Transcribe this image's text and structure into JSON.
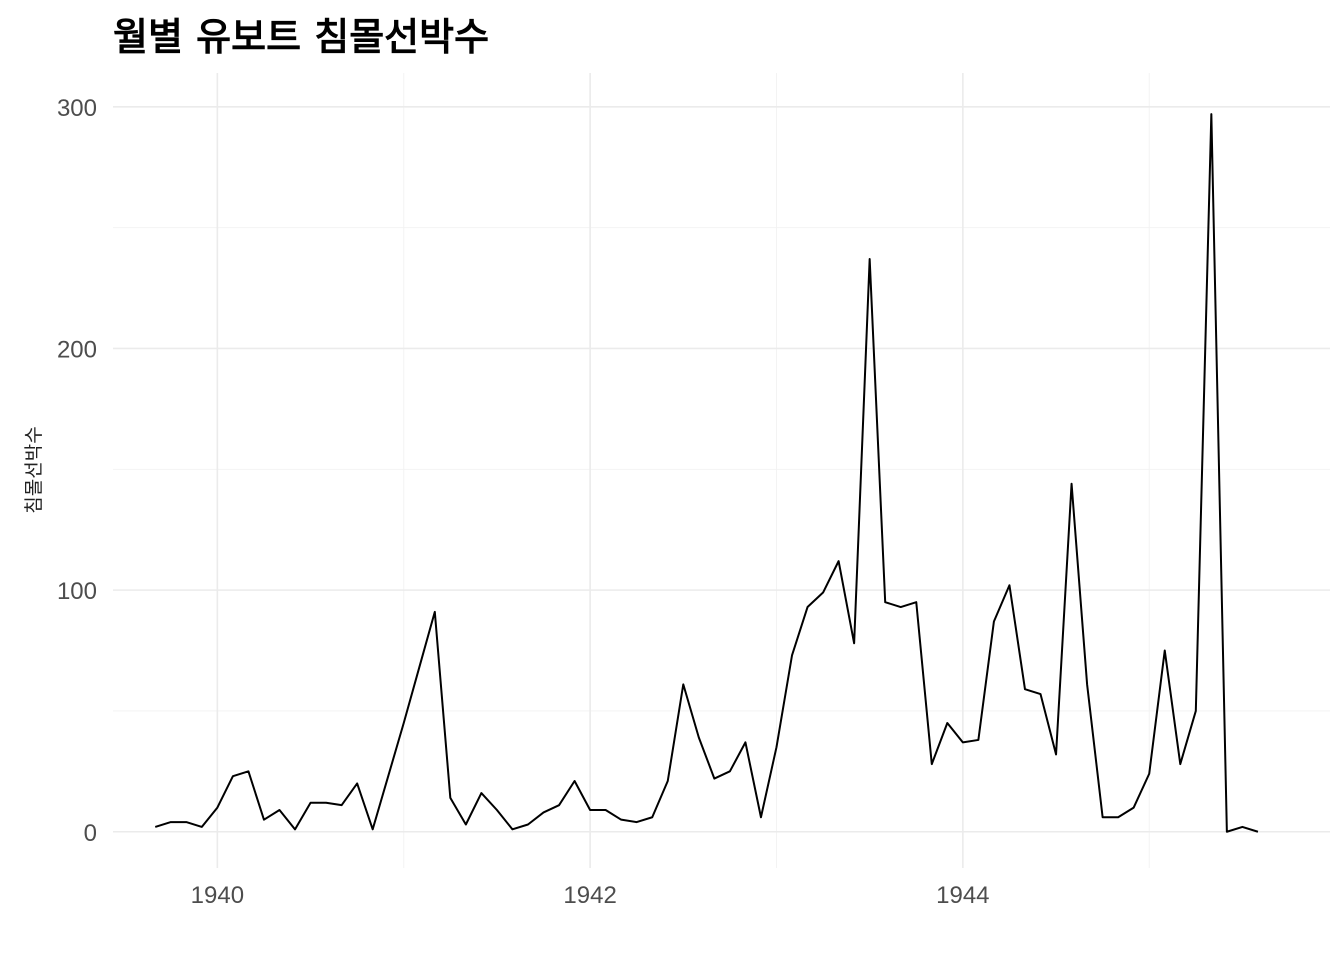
{
  "chart_data": {
    "type": "line",
    "title": "월별 유보트 침몰선박수",
    "xlabel": "",
    "ylabel": "침몰선박수",
    "x_ticks": [
      1940,
      1942,
      1944
    ],
    "y_ticks": [
      0,
      100,
      200,
      300
    ],
    "xlim": [
      1939.44,
      1945.97
    ],
    "ylim": [
      -15,
      314
    ],
    "grid": true,
    "legend": "none",
    "line_color": "#000000",
    "series": [
      {
        "start": "1939-09",
        "values": [
          2,
          4,
          4,
          2,
          10,
          23,
          25,
          5,
          9,
          1,
          12,
          12,
          11,
          20,
          1,
          23,
          45,
          68,
          91,
          14,
          3,
          16,
          9,
          1,
          3,
          8,
          11,
          21,
          9,
          9,
          5,
          4,
          6,
          21,
          61,
          39,
          22,
          25,
          37,
          6,
          35,
          73,
          93,
          99,
          112,
          78,
          237,
          95,
          93,
          95,
          28,
          45,
          37,
          38,
          87,
          102,
          59,
          57,
          32,
          144,
          61,
          6,
          6,
          10,
          24,
          75,
          28,
          50,
          297,
          0,
          2,
          0
        ]
      }
    ]
  }
}
